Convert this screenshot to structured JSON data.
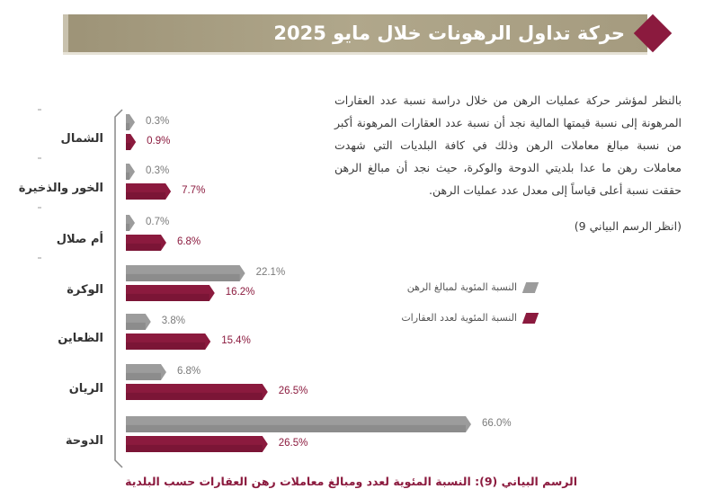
{
  "header": {
    "title": "حركة تداول الرهونات خلال مايو 2025"
  },
  "intro": {
    "text": "بالنظر لمؤشر حركة عمليات الرهن من خلال دراسة نسبة عدد العقارات المرهونة إلى نسبة قيمتها المالية نجد أن نسبة عدد العقارات المرهونة أكبر من نسبة مبالغ معاملات الرهن وذلك في كافة البلديات التي شهدت معاملات رهن ما عدا بلديتي الدوحة والوكرة، حيث نجد أن مبالغ الرهن حققت نسبة أعلى قياساً إلى معدل عدد عمليات الرهن.",
    "reference": "(انظر الرسم البياني 9)"
  },
  "legend": {
    "amounts": "النسبة المئوية لمبالغ الرهن",
    "counts": "النسبة المئوية لعدد العقارات"
  },
  "colors": {
    "gray": "#9c9c9c",
    "crimson": "#8b1a3e",
    "header": "#a59b7f"
  },
  "chart_data": {
    "type": "bar",
    "orientation": "horizontal",
    "categories": [
      "الشمال",
      "الخور والذخيرة",
      "أم صلال",
      "الوكرة",
      "الظعاين",
      "الريان",
      "الدوحة"
    ],
    "series": [
      {
        "name": "النسبة المئوية لمبالغ الرهن",
        "values": [
          0.3,
          0.3,
          0.7,
          22.1,
          3.8,
          6.8,
          66.0
        ],
        "labels": [
          "0.3%",
          "0.3%",
          "0.7%",
          "22.1%",
          "3.8%",
          "6.8%",
          "66.0%"
        ]
      },
      {
        "name": "النسبة المئوية لعدد العقارات",
        "values": [
          0.9,
          7.7,
          6.8,
          16.2,
          15.4,
          26.5,
          26.5
        ],
        "labels": [
          "0.9%",
          "7.7%",
          "6.8%",
          "16.2%",
          "15.4%",
          "26.5%",
          "26.5%"
        ]
      }
    ],
    "xlim": [
      0,
      70
    ],
    "grid": false
  },
  "caption": "الرسم البياني (9): النسبة المئوية لعدد ومبالغ معاملات رهن العقارات حسب البلدية"
}
